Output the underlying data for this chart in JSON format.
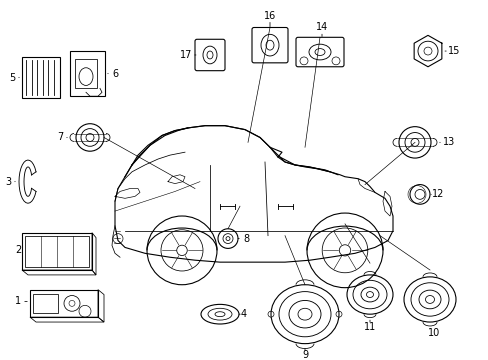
{
  "background_color": "#ffffff",
  "line_color": "#000000",
  "figsize": [
    4.89,
    3.6
  ],
  "dpi": 100,
  "xlim": [
    0,
    489
  ],
  "ylim": [
    0,
    360
  ]
}
